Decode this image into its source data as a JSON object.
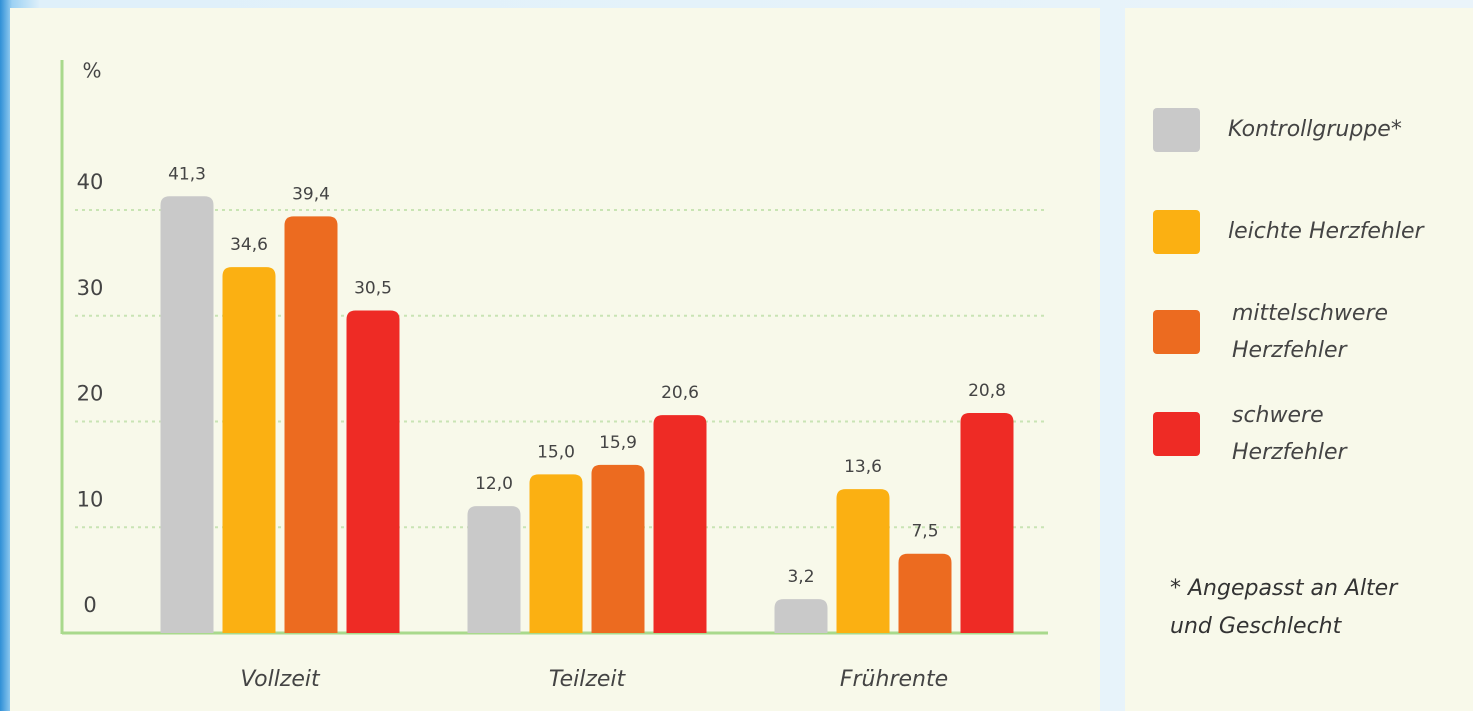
{
  "chart_data": {
    "type": "bar",
    "y_label": "%",
    "categories": [
      "Vollzeit",
      "Teilzeit",
      "Frührente"
    ],
    "series": [
      {
        "name": "Kontrollgruppe*",
        "color": "#c9c9c9",
        "values": [
          41.3,
          12.0,
          3.2
        ],
        "value_labels": [
          "41,3",
          "12,0",
          "3,2"
        ]
      },
      {
        "name": "leichte Herzfehler",
        "color": "#fbb012",
        "values": [
          34.6,
          15.0,
          13.6
        ],
        "value_labels": [
          "34,6",
          "15,0",
          "13,6"
        ]
      },
      {
        "name": "mittelschwere Herzfehler",
        "color": "#ec6b20",
        "values": [
          39.4,
          15.9,
          7.5
        ],
        "value_labels": [
          "39,4",
          "15,9",
          "7,5"
        ]
      },
      {
        "name": "schwere Herzfehler",
        "color": "#ee2b25",
        "values": [
          30.5,
          20.6,
          20.8
        ],
        "value_labels": [
          "30,5",
          "20,6",
          "20,8"
        ]
      }
    ],
    "ylim": [
      0,
      40
    ],
    "yticks": [
      0,
      10,
      20,
      30,
      40
    ],
    "grid": true,
    "note": "* Angepasst an Alter und Geschlecht"
  }
}
